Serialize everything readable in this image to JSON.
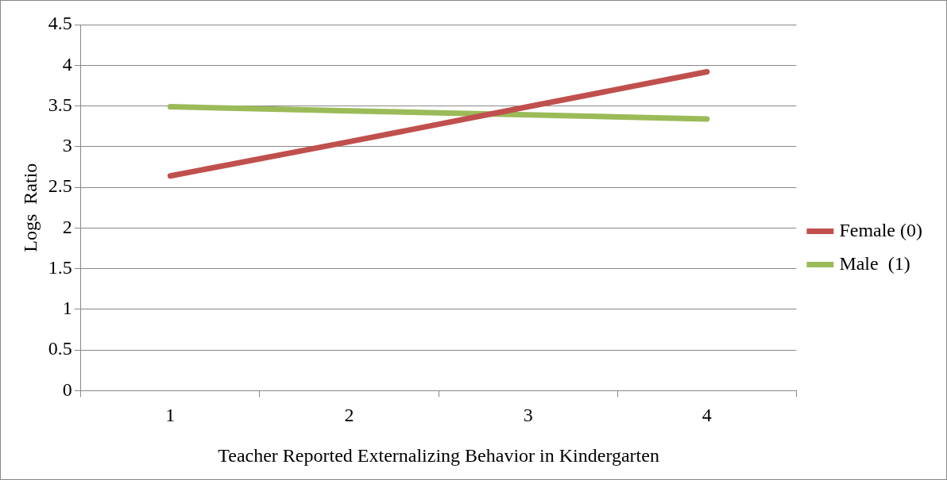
{
  "chart_data": {
    "type": "line",
    "xlabel": "Teacher Reported Externalizing Behavior in Kindergarten",
    "ylabel": "Logs  Ratio",
    "categories": [
      "1",
      "2",
      "3",
      "4"
    ],
    "series": [
      {
        "name": "Female (0)",
        "color": "#c0504d",
        "values": [
          2.64,
          3.06,
          3.49,
          3.92
        ]
      },
      {
        "name": "Male  (1)",
        "color": "#9bbb59",
        "values": [
          3.49,
          3.44,
          3.39,
          3.34
        ]
      }
    ],
    "ylim": [
      0,
      4.5
    ],
    "yticks": [
      0,
      0.5,
      1,
      1.5,
      2,
      2.5,
      3,
      3.5,
      4,
      4.5
    ],
    "grid": "y",
    "legend": "right",
    "marker": "none",
    "line_style": "solid"
  }
}
